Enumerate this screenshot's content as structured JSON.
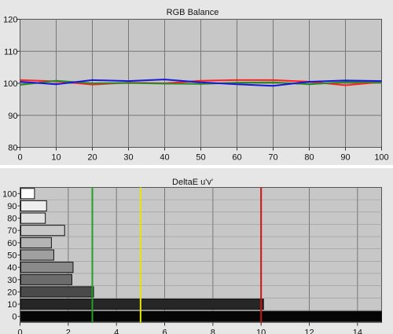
{
  "chart_data": [
    {
      "type": "line",
      "title": "RGB Balance",
      "x": [
        0,
        10,
        20,
        30,
        40,
        50,
        60,
        70,
        80,
        90,
        100
      ],
      "xlim": [
        0,
        100
      ],
      "ylim": [
        80,
        120
      ],
      "xticks": [
        "0",
        "10",
        "20",
        "30",
        "40",
        "50",
        "60",
        "70",
        "80",
        "90",
        "100"
      ],
      "yticks": [
        "80",
        "90",
        "100",
        "110",
        "120"
      ],
      "grid": true,
      "series": [
        {
          "color": "#ff2020",
          "values": [
            101,
            100.6,
            99.6,
            100.2,
            100,
            100.8,
            101,
            101,
            100.5,
            99.4,
            100.4
          ]
        },
        {
          "color": "#2a8a2a",
          "values": [
            99.5,
            100.8,
            100,
            100.1,
            99.9,
            99.8,
            100.2,
            100.3,
            99.7,
            100.4,
            100.3
          ]
        },
        {
          "color": "#1818d8",
          "values": [
            100.5,
            99.7,
            101,
            100.7,
            101.2,
            100.3,
            99.7,
            99.2,
            100.5,
            100.9,
            100.7
          ]
        }
      ]
    },
    {
      "type": "bar",
      "orientation": "horizontal",
      "title": "DeltaE u'v'",
      "categories": [
        "100",
        "90",
        "80",
        "70",
        "60",
        "50",
        "40",
        "30",
        "20",
        "10",
        "0"
      ],
      "values": [
        0.6,
        1.1,
        1.05,
        1.85,
        1.3,
        1.4,
        2.2,
        2.15,
        3.05,
        10.1,
        15
      ],
      "bar_colors": [
        "#ffffff",
        "#eeeeee",
        "#e2e2e2",
        "#c8c8c8",
        "#b4b4b4",
        "#a0a0a0",
        "#8a8a8a",
        "#6c6c6c",
        "#4a4a4a",
        "#262626",
        "#050505"
      ],
      "xlim": [
        0,
        15
      ],
      "xticks": [
        "0",
        "2",
        "4",
        "6",
        "8",
        "10",
        "12",
        "14"
      ],
      "grid": true,
      "thresholds": [
        {
          "value": 3,
          "color": "#22a022"
        },
        {
          "value": 5,
          "color": "#e6e600"
        },
        {
          "value": 10,
          "color": "#d01010"
        }
      ]
    }
  ]
}
